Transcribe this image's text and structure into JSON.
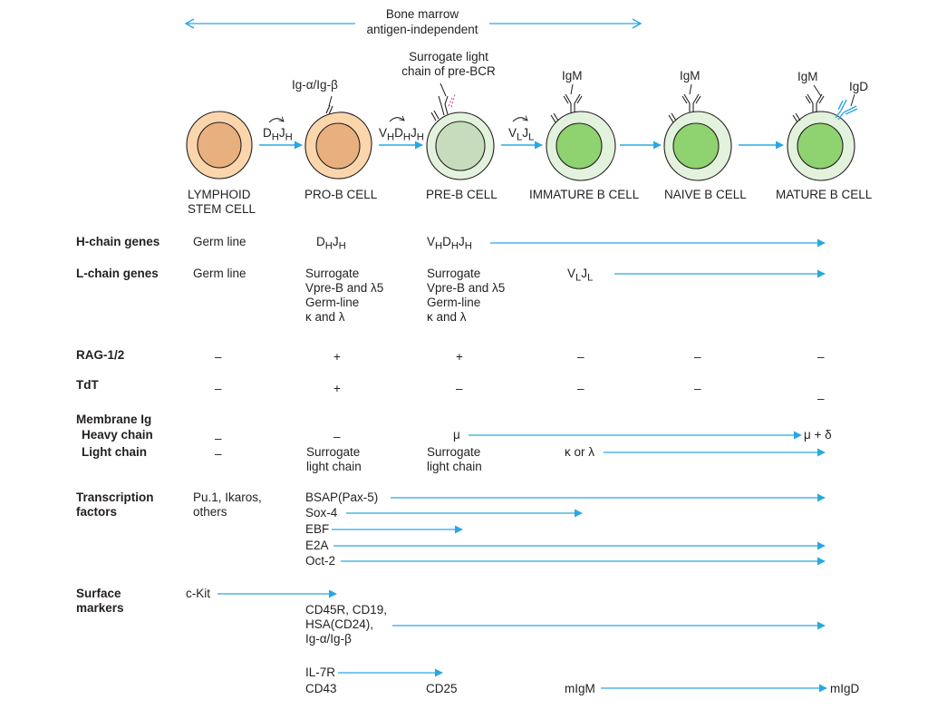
{
  "header": {
    "line1": "Bone marrow",
    "line2": "antigen-independent"
  },
  "annotations": {
    "ig_alpha_beta": "Ig-α/Ig-β",
    "surrogate_light_chain": "Surrogate light\nchain of pre-BCR",
    "igm_1": "IgM",
    "igm_2": "IgM",
    "igm_3": "IgM",
    "igd": "IgD"
  },
  "rearrangements": {
    "dj": {
      "main1": "D",
      "sub1": "H",
      "main2": "J",
      "sub2": "H"
    },
    "vdj": {
      "main1": "V",
      "sub1": "H",
      "main2": "D",
      "sub2": "H",
      "main3": "J",
      "sub3": "H"
    },
    "vj": {
      "main1": "V",
      "sub1": "L",
      "main2": "J",
      "sub2": "L"
    }
  },
  "stages": [
    {
      "label": "LYMPHOID\nSTEM CELL",
      "color": "peach"
    },
    {
      "label": "PRO-B CELL",
      "color": "peach"
    },
    {
      "label": "PRE-B CELL",
      "color": "pale-green"
    },
    {
      "label": "IMMATURE B CELL",
      "color": "green"
    },
    {
      "label": "NAIVE B CELL",
      "color": "green"
    },
    {
      "label": "MATURE B CELL",
      "color": "green"
    }
  ],
  "rows": {
    "h_chain": {
      "label": "H-chain genes",
      "stem": "Germ line",
      "prob": {
        "main1": "D",
        "sub1": "H",
        "main2": "J",
        "sub2": "H"
      },
      "preb": {
        "main1": "V",
        "sub1": "H",
        "main2": "D",
        "sub2": "H",
        "main3": "J",
        "sub3": "H"
      }
    },
    "l_chain": {
      "label": "L-chain genes",
      "stem": "Germ line",
      "prob": "Surrogate\nVpre-B and λ5\nGerm-line\nκ and λ",
      "preb": "Surrogate\nVpre-B and λ5\nGerm-line\nκ and λ",
      "immature": {
        "main1": "V",
        "sub1": "L",
        "main2": "J",
        "sub2": "L"
      }
    },
    "rag": {
      "label": "RAG-1/2",
      "values": [
        "–",
        "+",
        "+",
        "–",
        "–",
        "–"
      ]
    },
    "tdt": {
      "label": "TdT",
      "values": [
        "–",
        "+",
        "–",
        "–",
        "–",
        "–"
      ]
    },
    "membrane_ig": {
      "label": "Membrane Ig",
      "heavy_label": "Heavy chain",
      "light_label": "Light chain",
      "heavy_stem": "–",
      "heavy_prob": "–",
      "heavy_preb": "μ",
      "heavy_mature": "μ + δ",
      "light_stem": "–",
      "light_prob": "Surrogate\nlight chain",
      "light_preb": "Surrogate\nlight chain",
      "light_immature": "κ or λ"
    },
    "transcription": {
      "label": "Transcription\nfactors",
      "stem": "Pu.1, Ikaros,\nothers",
      "items": [
        "BSAP(Pax-5)",
        "Sox-4",
        "EBF",
        "E2A",
        "Oct-2"
      ]
    },
    "surface": {
      "label": "Surface\nmarkers",
      "ckit": "c-Kit",
      "cd_group": "CD45R, CD19,\nHSA(CD24),\nIg-α/Ig-β",
      "il7r": "IL-7R",
      "cd43": "CD43",
      "cd25": "CD25",
      "migm": "mIgM",
      "migd": "mIgD"
    }
  },
  "colors": {
    "arrow": "#29a8e0",
    "peach_outer": "#fbd6ac",
    "peach_inner": "#e8b07f",
    "palegreen_outer": "#e3f2dd",
    "palegreen_inner": "#c6dcbc",
    "green_outer": "#e3f2dd",
    "green_inner": "#8fd270",
    "outline": "#231f20",
    "pink": "#e0509a"
  }
}
